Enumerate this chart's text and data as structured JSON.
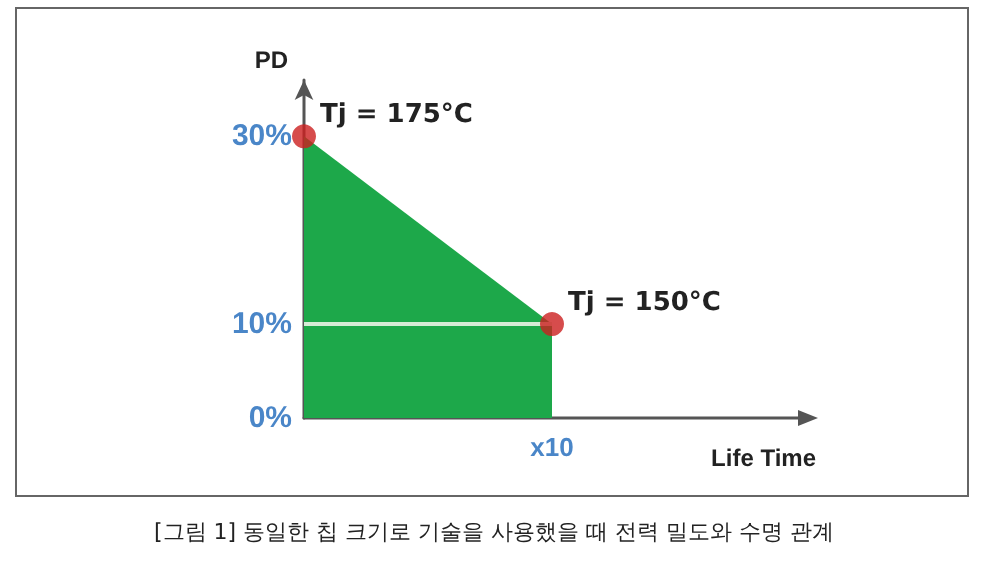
{
  "chart_data": {
    "type": "area",
    "ylabel": "PD",
    "xlabel": "Life Time",
    "categories": [
      null,
      "x10",
      null
    ],
    "ylim": [
      0,
      36
    ],
    "yticks": [
      {
        "value": 0,
        "label": "0%"
      },
      {
        "value": 10,
        "label": "10%"
      },
      {
        "value": 30,
        "label": "30%"
      }
    ],
    "series": [
      {
        "color": "#1da84a",
        "values": [
          30,
          10,
          null
        ]
      },
      {
        "type": "line",
        "color": "#d6ecd6",
        "values": [
          10,
          10,
          null
        ]
      },
      {
        "type": "scatter",
        "color": "#cc1f1f",
        "values": [
          30,
          10,
          null
        ]
      }
    ],
    "grid": false,
    "annotations": [
      "Tj = 175°C",
      {
        "text": "Tj = 150°C",
        "x": "x10",
        "y": 10
      },
      "[그림 1] 동일한 칩 크기로 기술을 사용했을 때 전력 밀도와 수명 관계"
    ]
  }
}
